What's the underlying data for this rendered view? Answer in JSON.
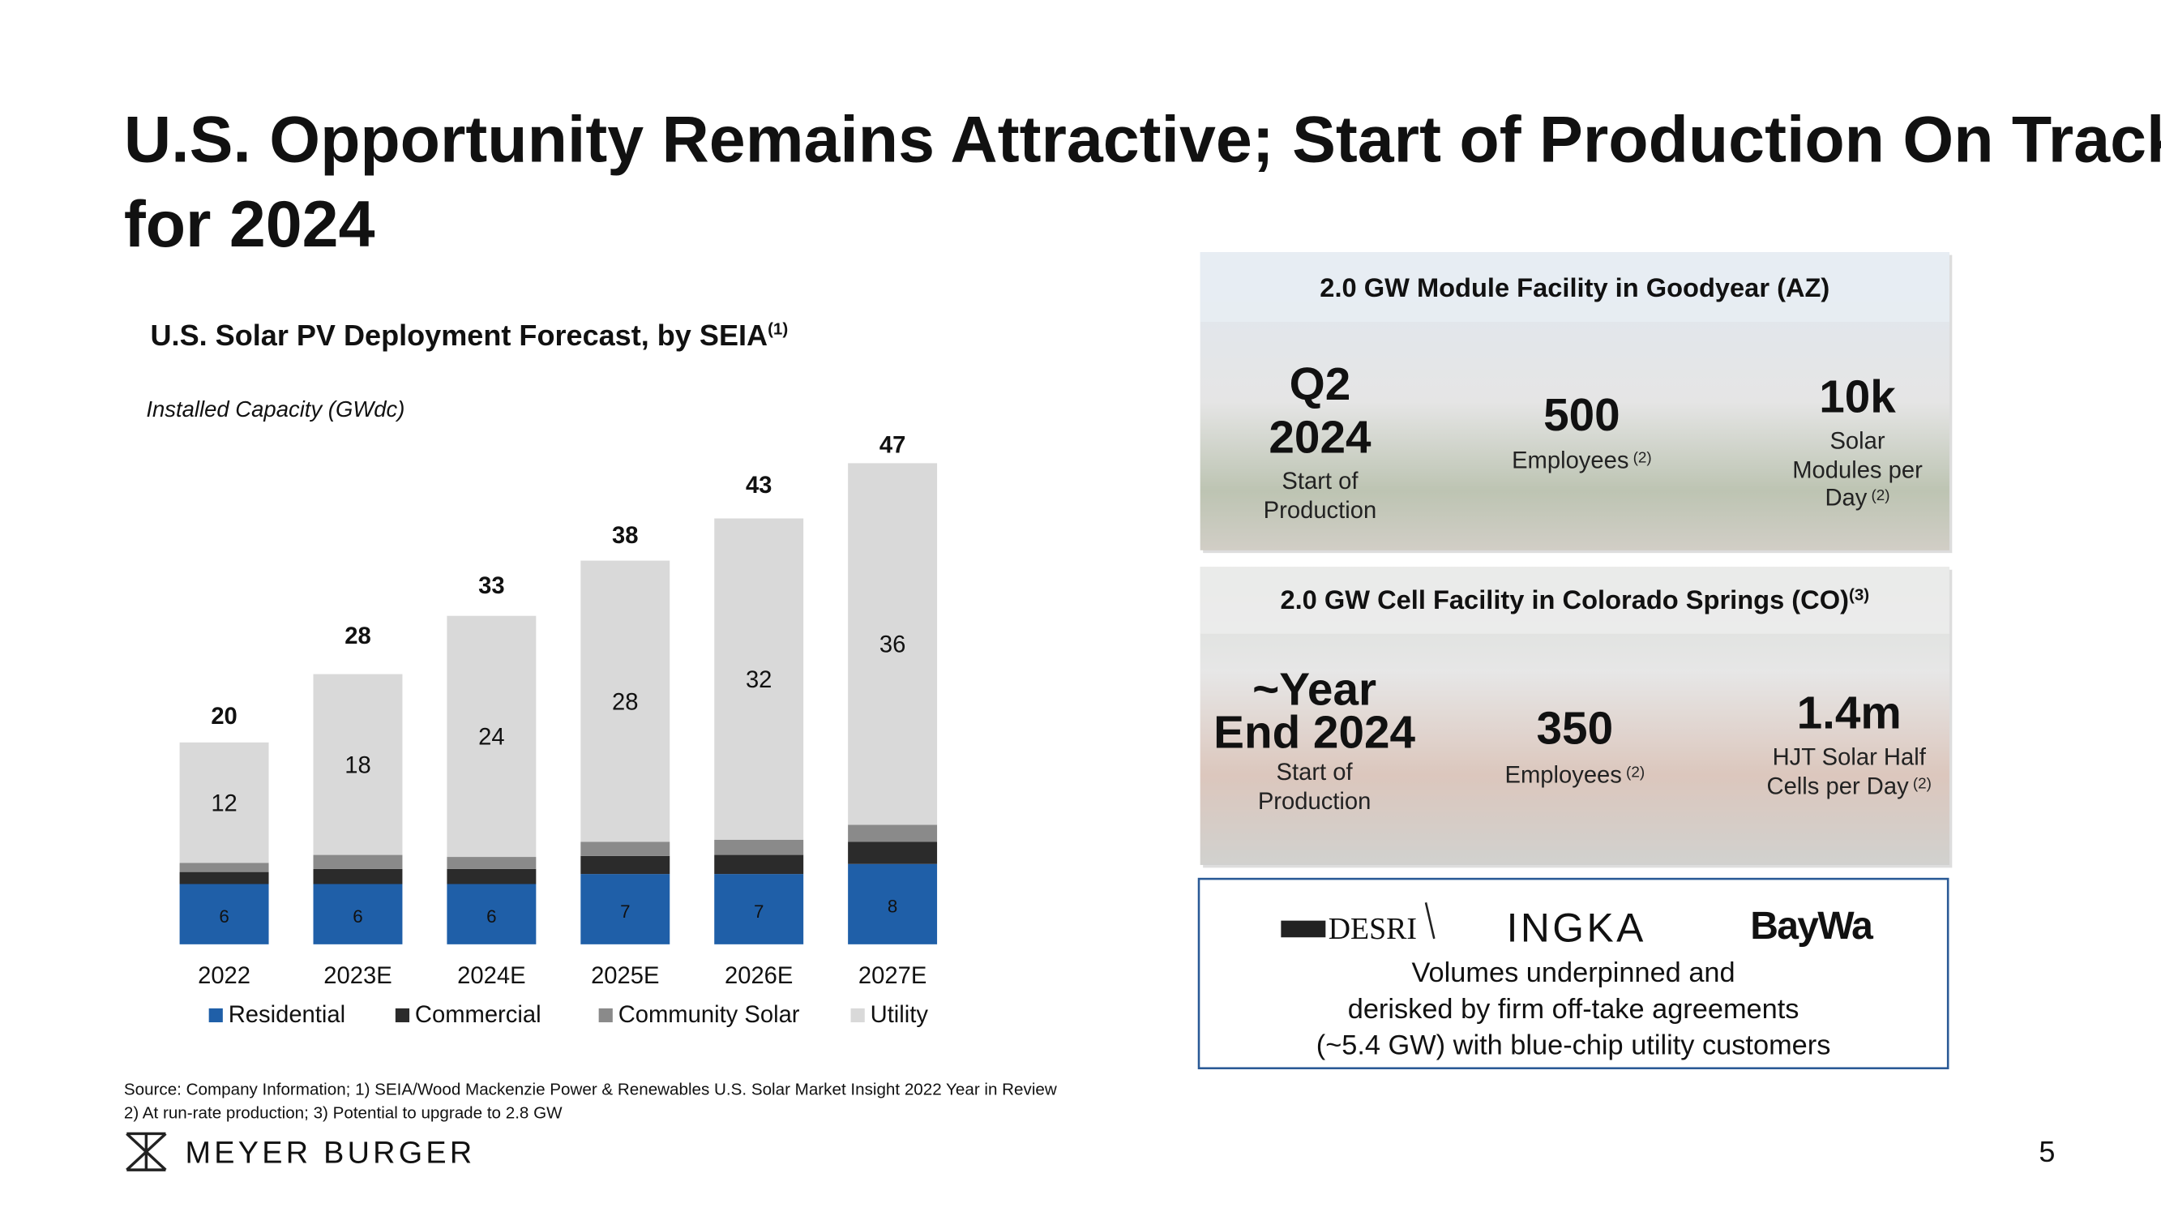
{
  "title": [
    "U.S. Opportunity Remains Attractive; Start of Production On Track",
    "for 2024"
  ],
  "chart_data": {
    "type": "stacked_bar",
    "title": "U.S. Solar PV Deployment Forecast, by SEIA",
    "title_note": "(1)",
    "subtitle": "Installed Capacity (GWdc)",
    "categories": [
      "2022",
      "2023E",
      "2024E",
      "2025E",
      "2026E",
      "2027E"
    ],
    "series": [
      {
        "name": "Residential",
        "color": "#1f5fa8",
        "show_labels": true,
        "values": [
          6,
          6,
          6,
          7,
          7,
          8
        ]
      },
      {
        "name": "Commercial",
        "color": "#2b2b2b",
        "show_labels": false,
        "values": [
          1.2,
          1.5,
          1.5,
          1.8,
          1.9,
          2.2
        ]
      },
      {
        "name": "Community Solar",
        "color": "#8a8a8a",
        "show_labels": false,
        "values": [
          0.9,
          1.4,
          1.2,
          1.4,
          1.5,
          1.7
        ]
      },
      {
        "name": "Utility",
        "color": "#d9d9d9",
        "show_labels": true,
        "values": [
          12,
          18,
          24,
          28,
          32,
          36
        ]
      }
    ],
    "totals": [
      20,
      28,
      33,
      38,
      43,
      47
    ]
  },
  "facilities": [
    {
      "title": "2.0 GW Module Facility in Goodyear (AZ)",
      "title_note": "",
      "stats": [
        {
          "value_lines": [
            "Q2",
            "2024"
          ],
          "label_lines": [
            "Start of",
            "Production"
          ],
          "note": ""
        },
        {
          "value_lines": [
            "500"
          ],
          "label_lines": [
            "Employees"
          ],
          "note": "(2)"
        },
        {
          "value_lines": [
            "10k"
          ],
          "label_lines": [
            "Solar",
            "Modules per",
            "Day"
          ],
          "note": "(2)"
        }
      ]
    },
    {
      "title": "2.0 GW Cell Facility in Colorado Springs (CO)",
      "title_note": "(3)",
      "stats": [
        {
          "value_lines": [
            "~Year",
            "End 2024"
          ],
          "label_lines": [
            "Start of",
            "Production"
          ],
          "note": ""
        },
        {
          "value_lines": [
            "350"
          ],
          "label_lines": [
            "Employees"
          ],
          "note": "(2)"
        },
        {
          "value_lines": [
            "1.4m"
          ],
          "label_lines": [
            "HJT Solar Half",
            "Cells per Day"
          ],
          "note": "(2)"
        }
      ]
    }
  ],
  "partners": [
    "DESRI",
    "INGKA",
    "BayWa"
  ],
  "offtake_lines": [
    "Volumes underpinned and",
    "derisked by firm off-take agreements",
    "(~5.4 GW) with blue-chip utility customers"
  ],
  "footnotes": [
    "Source: Company Information; 1) SEIA/Wood Mackenzie Power & Renewables U.S. Solar Market Insight 2022 Year in Review",
    "2) At run-rate production; 3) Potential to upgrade to 2.8 GW"
  ],
  "company": "MEYER BURGER",
  "page_number": "5"
}
